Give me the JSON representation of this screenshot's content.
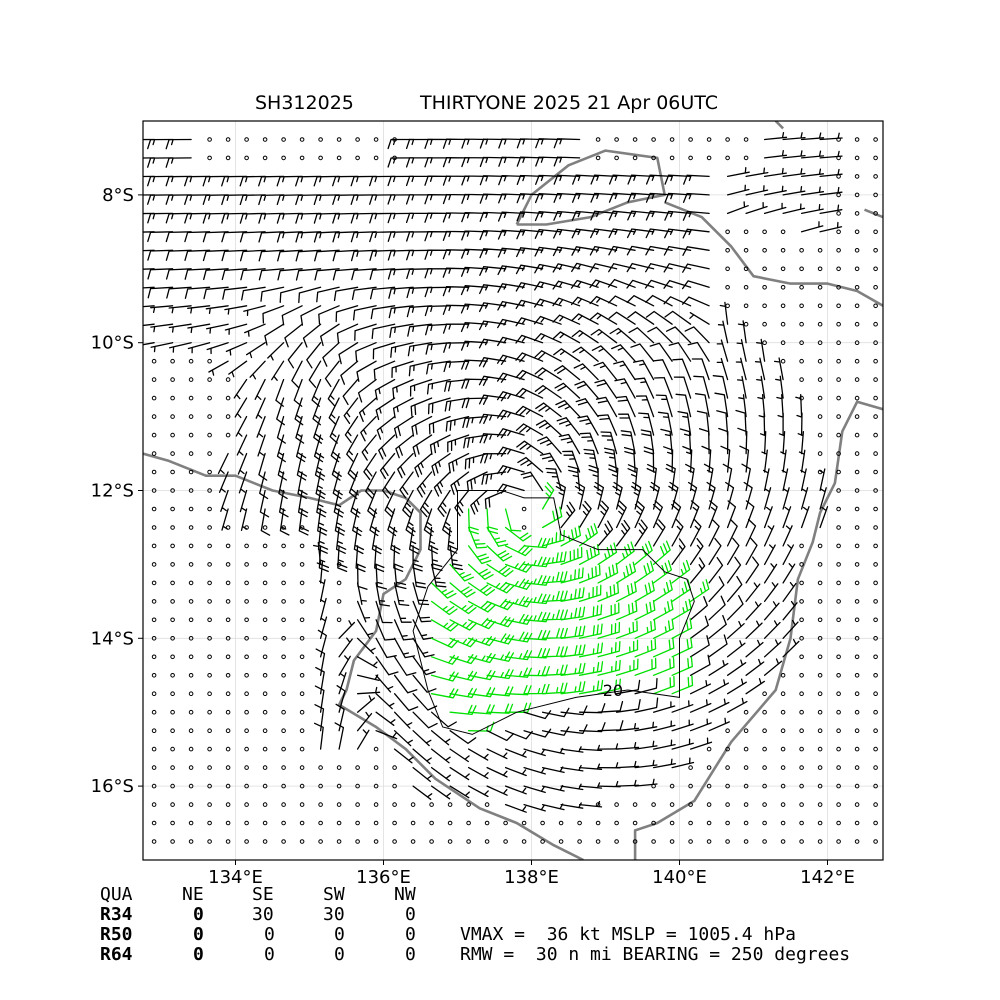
{
  "title": {
    "storm_id": "SH312025",
    "storm_label": "THIRTYONE 2025 21 Apr 06UTC"
  },
  "colors": {
    "barb_normal": "#000000",
    "barb_strong": "#00e000",
    "coastline": "#808080",
    "grid": "#dddddd",
    "contour": "#000000"
  },
  "chart_data": {
    "type": "wind_barb_map",
    "xlim": [
      132.75,
      142.75
    ],
    "ylim": [
      -17.0,
      -7.0
    ],
    "x_ticks": [
      134,
      136,
      138,
      140,
      142
    ],
    "x_tick_labels": [
      "134°E",
      "136°E",
      "138°E",
      "140°E",
      "142°E"
    ],
    "y_ticks": [
      -8,
      -10,
      -12,
      -14,
      -16
    ],
    "y_tick_labels": [
      "8°S",
      "10°S",
      "12°S",
      "14°S",
      "16°S"
    ],
    "grid": true,
    "barb_spacing_deg": 0.25,
    "strong_threshold_kt": 34,
    "circulation_center": {
      "lon": 137.9,
      "lat": -12.3
    },
    "secondary_trough_lon": 135.1,
    "contour_label": "20",
    "contour_level_kt": 20,
    "contour_polygon": [
      [
        137.0,
        -12.0
      ],
      [
        137.6,
        -12.0
      ],
      [
        137.9,
        -12.1
      ],
      [
        138.3,
        -12.1
      ],
      [
        138.4,
        -12.6
      ],
      [
        138.9,
        -12.8
      ],
      [
        139.5,
        -12.8
      ],
      [
        139.8,
        -13.1
      ],
      [
        140.1,
        -13.2
      ],
      [
        140.2,
        -13.5
      ],
      [
        140.0,
        -14.0
      ],
      [
        140.0,
        -14.8
      ],
      [
        139.3,
        -14.7
      ],
      [
        138.6,
        -14.8
      ],
      [
        137.8,
        -15.0
      ],
      [
        137.2,
        -15.3
      ],
      [
        136.8,
        -15.2
      ],
      [
        136.6,
        -14.7
      ],
      [
        136.4,
        -13.9
      ],
      [
        136.6,
        -13.3
      ],
      [
        137.0,
        -12.8
      ],
      [
        137.0,
        -12.0
      ]
    ],
    "coastlines": [
      [
        [
          132.75,
          -11.5
        ],
        [
          133.1,
          -11.6
        ],
        [
          133.6,
          -11.8
        ],
        [
          134.0,
          -11.8
        ],
        [
          134.5,
          -12.0
        ],
        [
          135.0,
          -12.1
        ],
        [
          135.4,
          -12.2
        ],
        [
          135.7,
          -12.0
        ],
        [
          136.0,
          -12.0
        ]
      ],
      [
        [
          136.0,
          -12.0
        ],
        [
          136.3,
          -12.1
        ],
        [
          136.5,
          -12.3
        ],
        [
          136.5,
          -12.8
        ],
        [
          136.3,
          -13.2
        ],
        [
          136.0,
          -13.4
        ],
        [
          135.9,
          -13.9
        ],
        [
          135.6,
          -14.3
        ],
        [
          135.5,
          -14.7
        ],
        [
          135.4,
          -14.9
        ],
        [
          135.9,
          -15.2
        ],
        [
          136.3,
          -15.5
        ],
        [
          136.7,
          -15.9
        ],
        [
          137.3,
          -16.3
        ],
        [
          137.8,
          -16.5
        ],
        [
          138.3,
          -16.8
        ],
        [
          138.7,
          -17.0
        ]
      ],
      [
        [
          139.4,
          -17.0
        ],
        [
          139.4,
          -16.6
        ],
        [
          139.7,
          -16.5
        ],
        [
          140.2,
          -16.2
        ],
        [
          140.7,
          -15.4
        ],
        [
          141.3,
          -14.7
        ],
        [
          141.5,
          -14.0
        ],
        [
          141.6,
          -13.2
        ],
        [
          141.8,
          -12.7
        ],
        [
          141.9,
          -12.3
        ],
        [
          142.1,
          -11.9
        ],
        [
          142.2,
          -11.2
        ],
        [
          142.4,
          -10.8
        ],
        [
          142.75,
          -10.9
        ]
      ],
      [
        [
          137.8,
          -8.4
        ],
        [
          138.0,
          -8.0
        ],
        [
          138.5,
          -7.6
        ],
        [
          139.0,
          -7.4
        ],
        [
          139.7,
          -7.5
        ],
        [
          139.8,
          -8.0
        ],
        [
          139.3,
          -8.1
        ],
        [
          138.8,
          -8.3
        ],
        [
          138.2,
          -8.4
        ],
        [
          137.8,
          -8.4
        ]
      ],
      [
        [
          139.8,
          -8.1
        ],
        [
          140.3,
          -8.3
        ],
        [
          140.7,
          -8.7
        ],
        [
          141.0,
          -9.1
        ],
        [
          141.5,
          -9.2
        ],
        [
          142.0,
          -9.2
        ],
        [
          142.4,
          -9.3
        ],
        [
          142.75,
          -9.5
        ]
      ],
      [
        [
          141.3,
          -7.0
        ],
        [
          141.4,
          -7.1
        ]
      ],
      [
        [
          142.5,
          -8.2
        ],
        [
          142.75,
          -8.3
        ]
      ]
    ]
  },
  "wind_radii_table": {
    "headers": [
      "QUA",
      "NE",
      "SE",
      "SW",
      "NW"
    ],
    "rows": [
      {
        "label": "R34",
        "values": [
          "0",
          "30",
          "30",
          "0"
        ]
      },
      {
        "label": "R50",
        "values": [
          "0",
          "0",
          "0",
          "0"
        ]
      },
      {
        "label": "R64",
        "values": [
          "0",
          "0",
          "0",
          "0"
        ]
      }
    ]
  },
  "stats": {
    "line1": "VMAX =  36 kt MSLP = 1005.4 hPa",
    "line2": "RMW =  30 n mi BEARING = 250 degrees"
  }
}
